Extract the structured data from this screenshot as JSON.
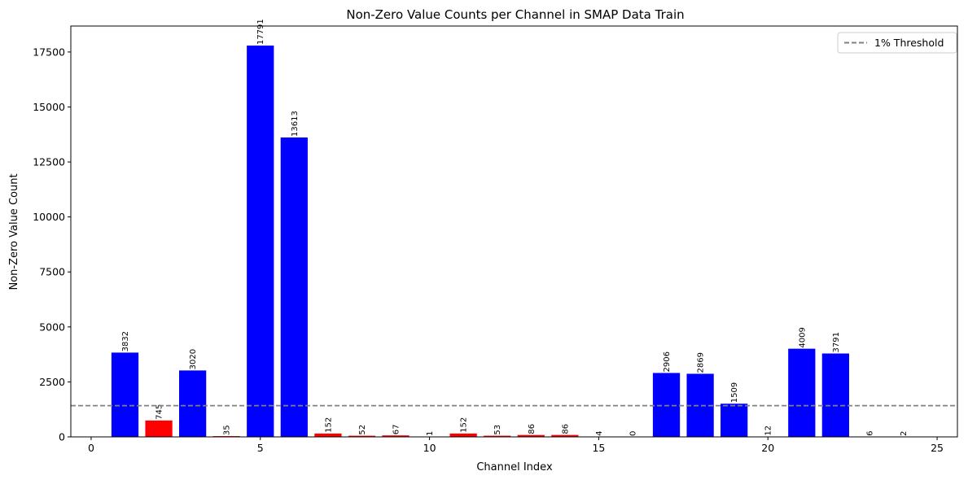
{
  "chart_data": {
    "type": "bar",
    "title": "Non-Zero Value Counts per Channel in SMAP Data Train",
    "xlabel": "Channel Index",
    "ylabel": "Non-Zero Value Count",
    "xlim": [
      -0.6,
      25.6
    ],
    "ylim": [
      0,
      18680
    ],
    "x_ticks": [
      0,
      5,
      10,
      15,
      20,
      25
    ],
    "y_ticks": [
      0,
      2500,
      5000,
      7500,
      10000,
      12500,
      15000,
      17500
    ],
    "x": [
      1,
      2,
      3,
      4,
      5,
      6,
      7,
      8,
      9,
      10,
      11,
      12,
      13,
      14,
      15,
      16,
      17,
      18,
      19,
      20,
      21,
      22,
      23,
      24
    ],
    "values": [
      3832,
      745,
      3020,
      35,
      17791,
      13613,
      152,
      52,
      67,
      1,
      152,
      53,
      86,
      86,
      4,
      0,
      2906,
      2869,
      1509,
      12,
      4009,
      3791,
      6,
      2
    ],
    "bar_colors": [
      "#0000ff",
      "#ff0000",
      "#0000ff",
      "#ff0000",
      "#0000ff",
      "#0000ff",
      "#ff0000",
      "#ff0000",
      "#ff0000",
      "#ff0000",
      "#ff0000",
      "#ff0000",
      "#ff0000",
      "#ff0000",
      "#ff0000",
      "#ff0000",
      "#0000ff",
      "#0000ff",
      "#0000ff",
      "#ff0000",
      "#0000ff",
      "#0000ff",
      "#ff0000",
      "#ff0000"
    ],
    "threshold": {
      "value": 1420,
      "label": "1% Threshold",
      "color": "#808080",
      "style": "dashed"
    },
    "legend_position": "top-right",
    "grid": false
  }
}
